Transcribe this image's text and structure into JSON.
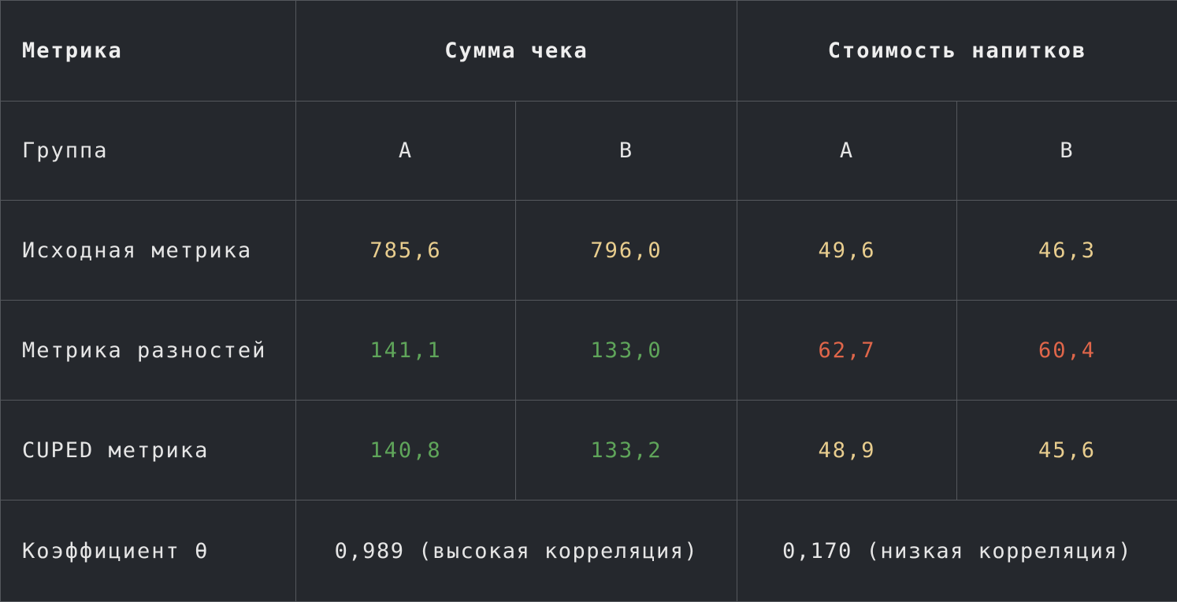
{
  "table": {
    "header": {
      "metric_label": "Метрика",
      "col_group_1": "Сумма чека",
      "col_group_2": "Стоимость напитков"
    },
    "group_row": {
      "label": "Группа",
      "g1_a": "A",
      "g1_b": "B",
      "g2_a": "A",
      "g2_b": "B"
    },
    "rows": [
      {
        "label": "Исходная метрика",
        "g1_a": "785,6",
        "g1_b": "796,0",
        "g2_a": "49,6",
        "g2_b": "46,3",
        "g1_color": "#e8cd8e",
        "g2_color": "#e8cd8e"
      },
      {
        "label": "Метрика разностей",
        "g1_a": "141,1",
        "g1_b": "133,0",
        "g2_a": "62,7",
        "g2_b": "60,4",
        "g1_color": "#5fa55a",
        "g2_color": "#e0664a"
      },
      {
        "label": "CUPED метрика",
        "g1_a": "140,8",
        "g1_b": "133,2",
        "g2_a": "48,9",
        "g2_b": "45,6",
        "g1_color": "#5fa55a",
        "g2_color": "#e8cd8e"
      }
    ],
    "theta_row": {
      "label": "Коэффициент θ",
      "g1": "0,989 (высокая корреляция)",
      "g2": "0,170 (низкая корреляция)"
    }
  },
  "colors": {
    "background": "#25282d",
    "border": "#55585d",
    "text": "#e6e6e6",
    "yellow": "#e8cd8e",
    "green": "#5fa55a",
    "red": "#e0664a"
  }
}
